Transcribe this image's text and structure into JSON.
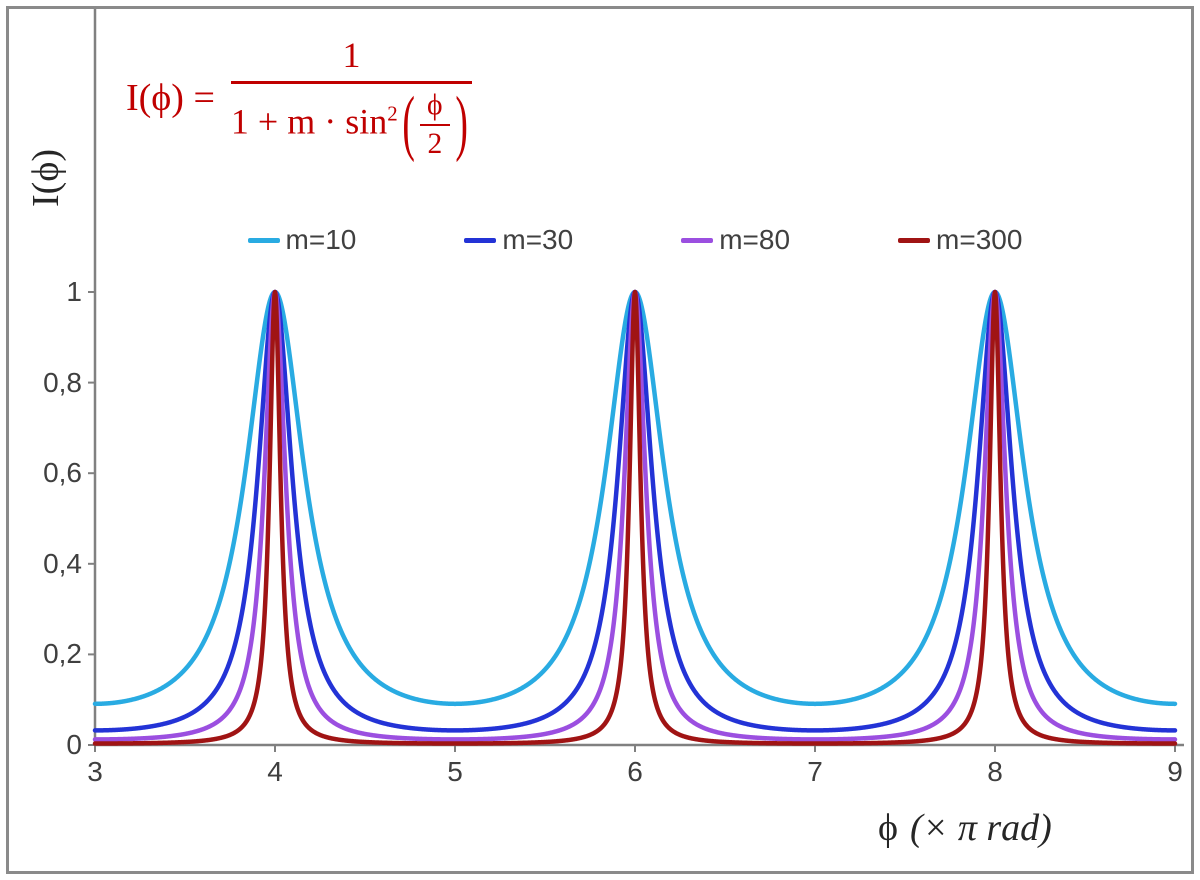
{
  "chart_data": {
    "type": "line",
    "title": "I(ϕ) = 1 / (1 + m·sin²(ϕ/2))",
    "function": "I(x) = 1 / (1 + m·sin²(π·x/2)), x expressed in units of π rad",
    "grid": false,
    "legend_position": "top-center",
    "peaks_at_x": [
      4,
      6,
      8
    ],
    "peak_value": 1,
    "x_axis": {
      "label": "ϕ (× π rad)",
      "label_phi": "ϕ",
      "label_rest": "(× π rad)",
      "min": 3,
      "max": 9,
      "tick_values": [
        3,
        4,
        5,
        6,
        7,
        8,
        9
      ],
      "tick_labels": [
        "3",
        "4",
        "5",
        "6",
        "7",
        "8",
        "9"
      ]
    },
    "y_axis": {
      "label": "I(ϕ)",
      "min": 0,
      "max": 1,
      "tick_values": [
        0,
        0.2,
        0.4,
        0.6,
        0.8,
        1
      ],
      "tick_labels": [
        "0",
        "0,2",
        "0,4",
        "0,6",
        "0,8",
        "1"
      ]
    },
    "series": [
      {
        "name": "m=10",
        "m": 10,
        "color": "#29ABE2",
        "peak_value": 1,
        "min_value": 0.0909
      },
      {
        "name": "m=30",
        "m": 30,
        "color": "#2333D6",
        "peak_value": 1,
        "min_value": 0.0323
      },
      {
        "name": "m=80",
        "m": 80,
        "color": "#9B4FE0",
        "peak_value": 1,
        "min_value": 0.0123
      },
      {
        "name": "m=300",
        "m": 300,
        "color": "#A01414",
        "peak_value": 1,
        "min_value": 0.0033
      }
    ]
  },
  "formula": {
    "lhs": "I(ϕ) =",
    "numerator": "1",
    "den_text": "1 + m · sin",
    "den_sup": "2",
    "paren_open": "(",
    "inner_num": "ϕ",
    "inner_den": "2",
    "paren_close": ")",
    "color": "#C00000"
  },
  "colors": {
    "axis": "#808080",
    "frame": "#8A8A8A",
    "tick_text": "#3F3F3F",
    "legend_text": "#404040",
    "background": "#FFFFFF"
  }
}
